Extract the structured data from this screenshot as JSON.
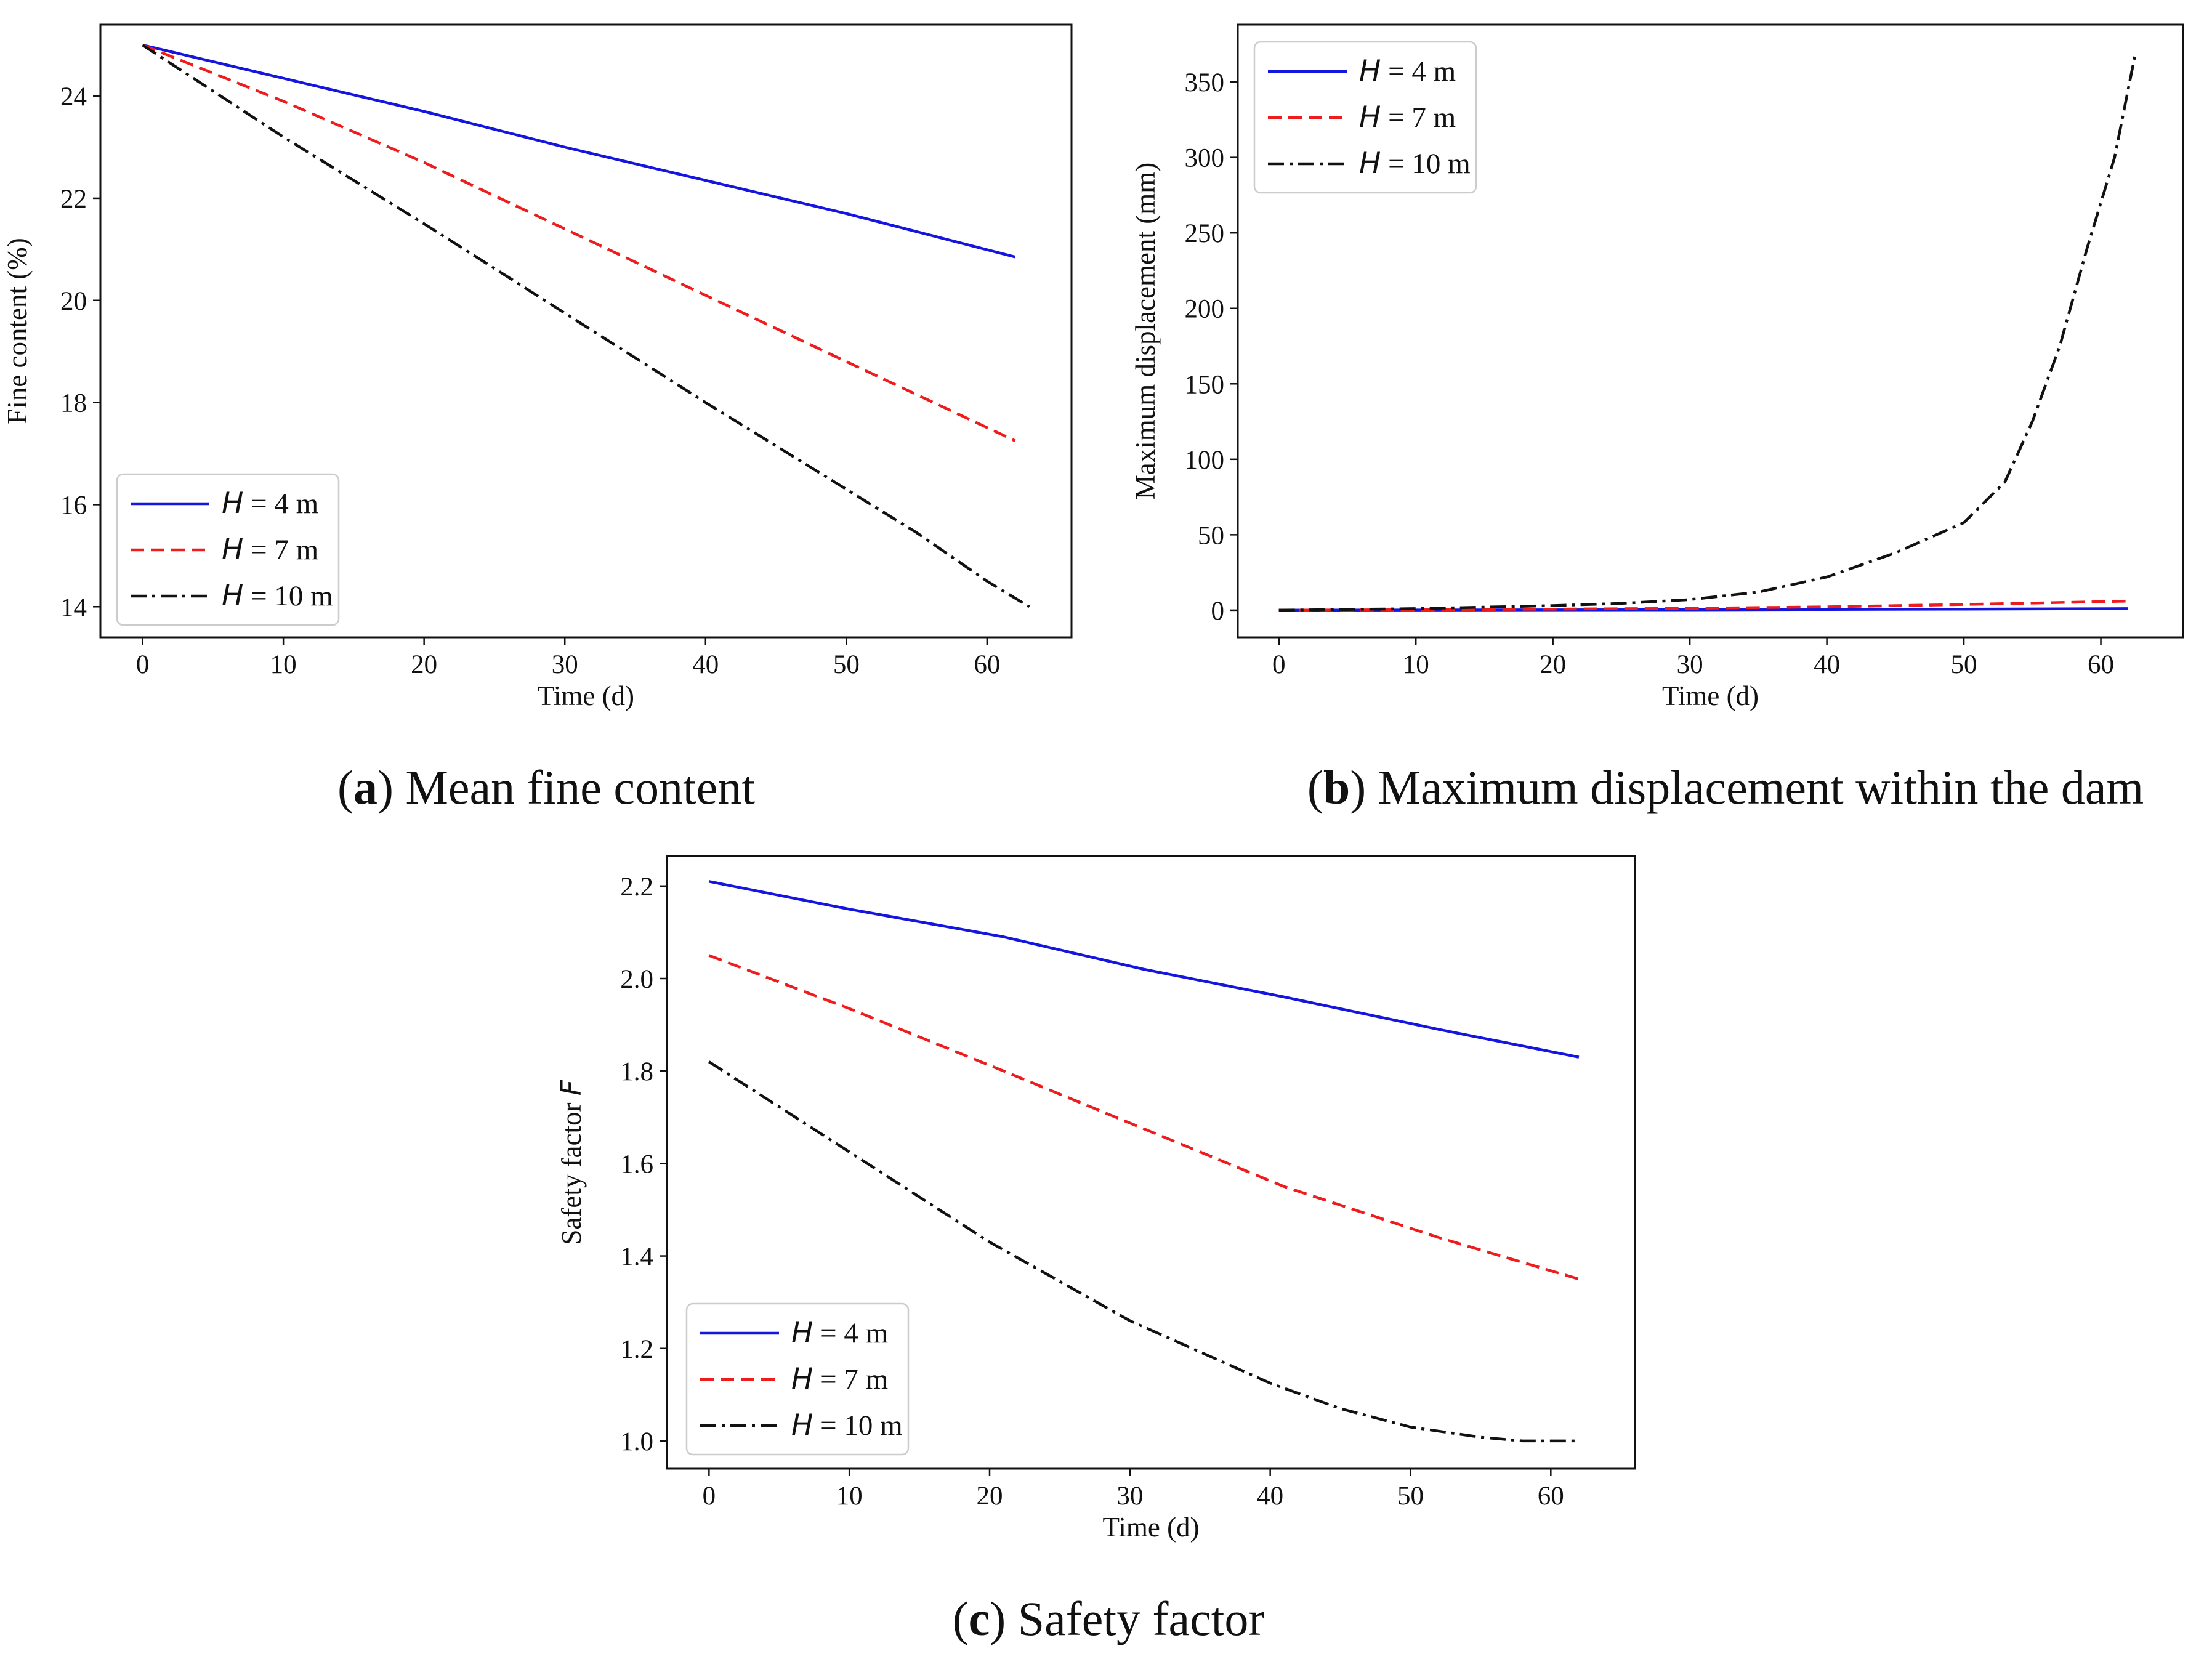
{
  "chart_data": [
    {
      "id": "a",
      "type": "line",
      "caption": {
        "letter": "a",
        "text": "Mean fine content"
      },
      "title": "",
      "xlabel": "Time (d)",
      "ylabel": "Fine content (%)",
      "xlim": [
        -3,
        66
      ],
      "ylim": [
        13.4,
        25.4
      ],
      "xticks": [
        0,
        10,
        20,
        30,
        40,
        50,
        60
      ],
      "yticks": [
        14,
        16,
        18,
        20,
        22,
        24
      ],
      "legend_position": "lower-left",
      "series": [
        {
          "name": "H = 4 m",
          "var": "H",
          "rest": " = 4 m",
          "color": "#1515e0",
          "dash": "solid",
          "x": [
            0,
            10,
            20,
            30,
            40,
            50,
            62
          ],
          "y": [
            25.0,
            24.35,
            23.7,
            23.0,
            22.35,
            21.7,
            20.85
          ]
        },
        {
          "name": "H = 7 m",
          "var": "H",
          "rest": " = 7 m",
          "color": "#ee1c1c",
          "dash": "dashed",
          "x": [
            0,
            10,
            20,
            30,
            40,
            50,
            62
          ],
          "y": [
            25.0,
            23.9,
            22.7,
            21.4,
            20.1,
            18.8,
            17.25
          ]
        },
        {
          "name": "H = 10 m",
          "var": "H",
          "rest": " = 10 m",
          "color": "#111111",
          "dash": "dashdot",
          "x": [
            0,
            10,
            20,
            30,
            40,
            50,
            55,
            60,
            63
          ],
          "y": [
            25.0,
            23.2,
            21.5,
            19.75,
            18.0,
            16.3,
            15.45,
            14.5,
            14.0
          ]
        }
      ]
    },
    {
      "id": "b",
      "type": "line",
      "caption": {
        "letter": "b",
        "text": "Maximum displacement within the dam"
      },
      "title": "",
      "xlabel": "Time (d)",
      "ylabel": "Maximum displacement (mm)",
      "xlim": [
        -3,
        66
      ],
      "ylim": [
        -18,
        388
      ],
      "xticks": [
        0,
        10,
        20,
        30,
        40,
        50,
        60
      ],
      "yticks": [
        0,
        50,
        100,
        150,
        200,
        250,
        300,
        350
      ],
      "legend_position": "upper-left",
      "series": [
        {
          "name": "H = 4 m",
          "var": "H",
          "rest": " = 4 m",
          "color": "#1515e0",
          "dash": "solid",
          "x": [
            0,
            10,
            20,
            30,
            40,
            50,
            62
          ],
          "y": [
            0,
            0.1,
            0.2,
            0.3,
            0.5,
            0.7,
            1.0
          ]
        },
        {
          "name": "H = 7 m",
          "var": "H",
          "rest": " = 7 m",
          "color": "#ee1c1c",
          "dash": "dashed",
          "x": [
            0,
            10,
            20,
            30,
            40,
            50,
            62
          ],
          "y": [
            0,
            0.3,
            0.7,
            1.2,
            2.2,
            3.8,
            6.0
          ]
        },
        {
          "name": "H = 10 m",
          "var": "H",
          "rest": " = 10 m",
          "color": "#111111",
          "dash": "dashdot",
          "x": [
            0,
            5,
            10,
            15,
            20,
            25,
            30,
            35,
            40,
            45,
            50,
            53,
            55,
            57,
            59,
            61,
            62.5
          ],
          "y": [
            0,
            0.5,
            1,
            2,
            3,
            4.5,
            7,
            12,
            22,
            38,
            58,
            85,
            125,
            175,
            240,
            300,
            368
          ]
        }
      ]
    },
    {
      "id": "c",
      "type": "line",
      "caption": {
        "letter": "c",
        "text": "Safety factor"
      },
      "title": "",
      "xlabel": "Time (d)",
      "ylabel": "Safety factor ",
      "ylabel_var": "F",
      "xlim": [
        -3,
        66
      ],
      "ylim": [
        0.94,
        2.265
      ],
      "xticks": [
        0,
        10,
        20,
        30,
        40,
        50,
        60
      ],
      "yticks": [
        1.0,
        1.2,
        1.4,
        1.6,
        1.8,
        2.0,
        2.2
      ],
      "legend_position": "lower-left",
      "series": [
        {
          "name": "H = 4 m",
          "var": "H",
          "rest": " = 4 m",
          "color": "#1515e0",
          "dash": "solid",
          "x": [
            0,
            10,
            21,
            31,
            41,
            52,
            62
          ],
          "y": [
            2.21,
            2.15,
            2.09,
            2.02,
            1.96,
            1.89,
            1.83
          ]
        },
        {
          "name": "H = 7 m",
          "var": "H",
          "rest": " = 7 m",
          "color": "#ee1c1c",
          "dash": "dashed",
          "x": [
            0,
            10,
            21,
            31,
            41,
            52,
            62
          ],
          "y": [
            2.05,
            1.935,
            1.8,
            1.675,
            1.55,
            1.44,
            1.35
          ]
        },
        {
          "name": "H = 10 m",
          "var": "H",
          "rest": " = 10 m",
          "color": "#111111",
          "dash": "dashdot",
          "x": [
            0,
            10,
            20,
            30,
            40,
            45,
            50,
            55,
            58,
            62
          ],
          "y": [
            1.82,
            1.625,
            1.43,
            1.26,
            1.125,
            1.07,
            1.03,
            1.008,
            1.0,
            1.0
          ]
        }
      ]
    }
  ]
}
